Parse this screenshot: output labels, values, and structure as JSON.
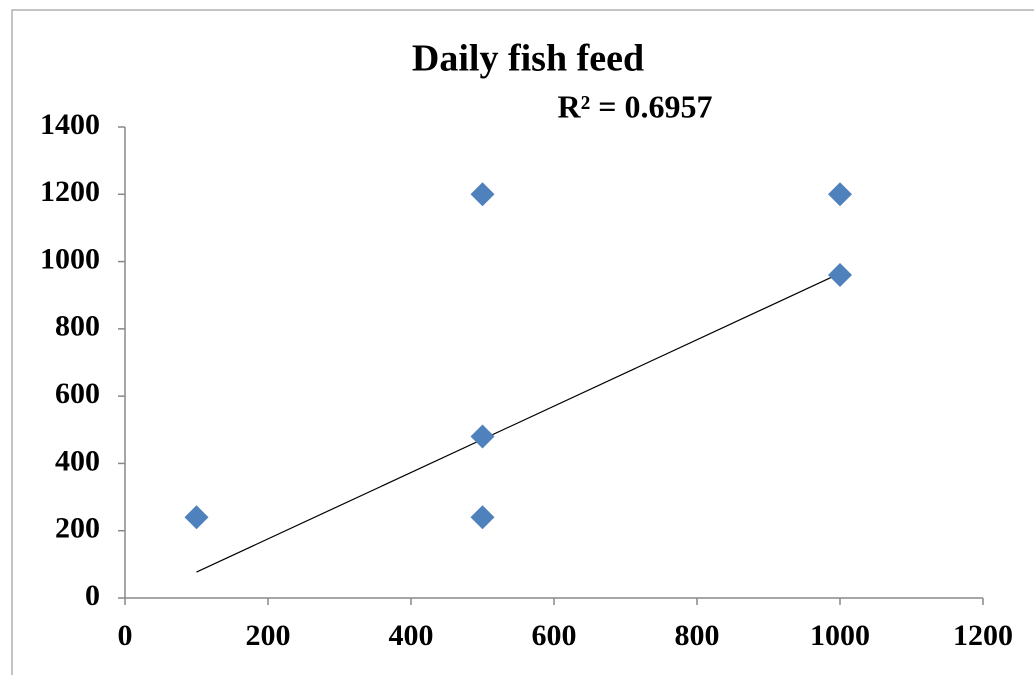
{
  "chart_data": {
    "type": "scatter",
    "title": "Daily fish feed",
    "annotation": "R² = 0.6957",
    "series": [
      {
        "color": "#4f81bd",
        "x": [
          100,
          500,
          500,
          500,
          1000,
          1000
        ],
        "values": [
          240,
          1200,
          480,
          240,
          1200,
          960
        ]
      }
    ],
    "trendline": {
      "x": [
        100,
        1000
      ],
      "values": [
        77,
        965
      ],
      "color": "#000000"
    },
    "xlim": [
      0,
      1200
    ],
    "xticks": [
      0,
      200,
      400,
      600,
      800,
      1000,
      1200
    ],
    "ylim": [
      0,
      1400
    ],
    "yticks": [
      0,
      200,
      400,
      600,
      800,
      1000,
      1200,
      1400
    ],
    "grid": false
  }
}
